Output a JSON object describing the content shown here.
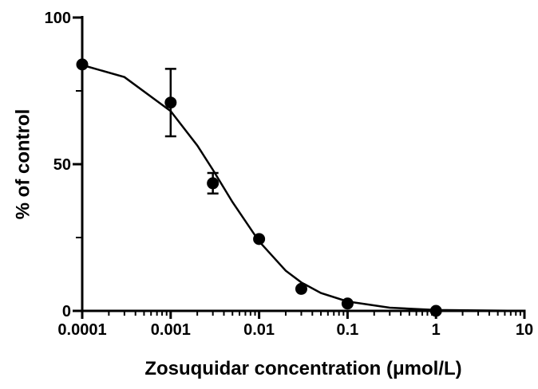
{
  "chart_data": {
    "type": "scatter",
    "xlabel": "Zosuquidar concentration (μmol/L)",
    "ylabel": "% of control",
    "log_x": true,
    "xlim": [
      0.0001,
      10
    ],
    "xticks": [
      0.0001,
      0.001,
      0.01,
      0.1,
      1,
      10
    ],
    "xminorticks": [
      0.0002,
      0.0003,
      0.0004,
      0.0005,
      0.0006,
      0.0007,
      0.0008,
      0.0009,
      0.002,
      0.003,
      0.004,
      0.005,
      0.006,
      0.007,
      0.008,
      0.009,
      0.02,
      0.03,
      0.04,
      0.05,
      0.06,
      0.07,
      0.08,
      0.09,
      0.2,
      0.3,
      0.4,
      0.5,
      0.6,
      0.7,
      0.8,
      0.9,
      2,
      3,
      4,
      5,
      6,
      7,
      8,
      9
    ],
    "ylim": [
      0,
      100
    ],
    "yticks": [
      0,
      50,
      100
    ],
    "yminorticks": [
      25,
      75
    ],
    "color": "#000000",
    "x": [
      0.0001,
      0.001,
      0.003,
      0.01,
      0.03,
      0.1,
      1
    ],
    "values": [
      84,
      71,
      43.5,
      24.5,
      7.5,
      2.5,
      0
    ],
    "errors": [
      null,
      11.5,
      3.5,
      null,
      null,
      null,
      null
    ],
    "curve": {
      "x": [
        0.0001,
        0.0003,
        0.001,
        0.002,
        0.003,
        0.005,
        0.01,
        0.02,
        0.03,
        0.05,
        0.1,
        0.3,
        1,
        10
      ],
      "values": [
        83.8,
        79.7,
        68.1,
        56.4,
        48.1,
        37.1,
        23.7,
        13.7,
        9.7,
        6.1,
        3.2,
        1.1,
        0.3,
        0.0
      ]
    }
  }
}
